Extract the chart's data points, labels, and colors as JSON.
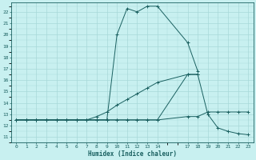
{
  "xlabel": "Humidex (Indice chaleur)",
  "bg_color": "#c8f0f0",
  "grid_color": "#a8d8d8",
  "line_color": "#1a6060",
  "xlim": [
    -0.5,
    23.5
  ],
  "ylim": [
    10.5,
    22.8
  ],
  "xtick_positions": [
    0,
    1,
    2,
    3,
    4,
    5,
    6,
    7,
    8,
    9,
    10,
    11,
    12,
    13,
    14,
    17,
    18,
    19,
    20,
    21,
    22,
    23
  ],
  "xtick_labels": [
    "0",
    "1",
    "2",
    "3",
    "4",
    "5",
    "6",
    "7",
    "8",
    "9",
    "10",
    "11",
    "12",
    "13",
    "14",
    "17",
    "18",
    "19",
    "20",
    "21",
    "22",
    "23"
  ],
  "ytick_positions": [
    11,
    12,
    13,
    14,
    15,
    16,
    17,
    18,
    19,
    20,
    21,
    22
  ],
  "ytick_labels": [
    "11",
    "12",
    "13",
    "14",
    "15",
    "16",
    "17",
    "18",
    "19",
    "20",
    "21",
    "22"
  ],
  "line1_x": [
    0,
    1,
    2,
    3,
    4,
    5,
    6,
    7,
    8,
    9,
    10,
    11,
    12,
    13,
    14,
    17,
    18
  ],
  "line1_y": [
    12.5,
    12.5,
    12.5,
    12.5,
    12.5,
    12.5,
    12.5,
    12.5,
    12.5,
    12.5,
    20.0,
    22.3,
    22.0,
    22.5,
    22.5,
    19.3,
    16.8
  ],
  "line2_x": [
    0,
    1,
    2,
    3,
    4,
    5,
    6,
    7,
    8,
    9,
    10,
    11,
    12,
    13,
    14,
    17,
    18,
    19,
    20,
    21,
    22,
    23
  ],
  "line2_y": [
    12.5,
    12.5,
    12.5,
    12.5,
    12.5,
    12.5,
    12.5,
    12.5,
    12.5,
    12.5,
    12.5,
    12.5,
    12.5,
    12.5,
    12.5,
    16.5,
    16.5,
    13.0,
    11.8,
    11.5,
    11.3,
    11.2
  ],
  "line3_x": [
    0,
    1,
    2,
    3,
    4,
    5,
    6,
    7,
    8,
    9,
    10,
    11,
    12,
    13,
    14,
    17,
    18
  ],
  "line3_y": [
    12.5,
    12.5,
    12.5,
    12.5,
    12.5,
    12.5,
    12.5,
    12.5,
    12.8,
    13.2,
    13.8,
    14.3,
    14.8,
    15.3,
    15.8,
    16.5,
    16.5
  ],
  "line4_x": [
    0,
    1,
    2,
    3,
    4,
    5,
    6,
    7,
    8,
    9,
    10,
    11,
    12,
    13,
    14,
    17,
    18,
    19,
    20,
    21,
    22,
    23
  ],
  "line4_y": [
    12.5,
    12.5,
    12.5,
    12.5,
    12.5,
    12.5,
    12.5,
    12.5,
    12.5,
    12.5,
    12.5,
    12.5,
    12.5,
    12.5,
    12.5,
    12.8,
    12.8,
    13.2,
    13.2,
    13.2,
    13.2,
    13.2
  ]
}
